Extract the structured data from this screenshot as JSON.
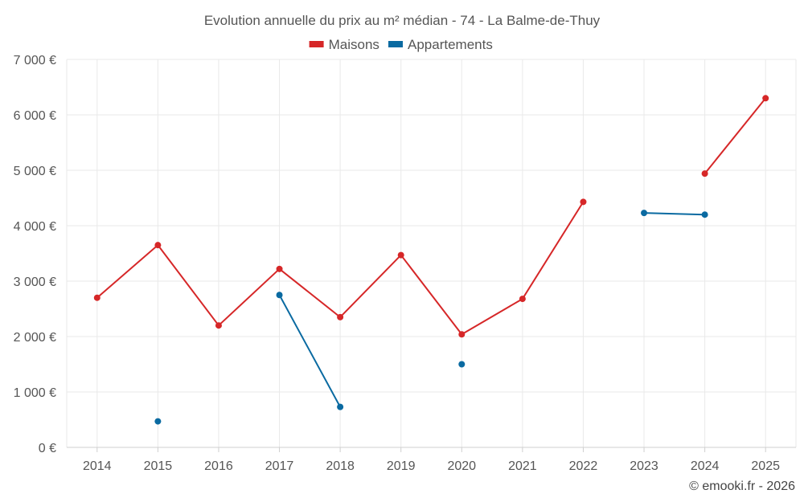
{
  "chart_data": {
    "type": "line",
    "title": "Evolution annuelle du prix au m² médian - 74 - La Balme-de-Thuy",
    "categories": [
      "2014",
      "2015",
      "2016",
      "2017",
      "2018",
      "2019",
      "2020",
      "2021",
      "2022",
      "2023",
      "2024",
      "2025"
    ],
    "ylim": [
      0,
      7000
    ],
    "yticks": [
      0,
      1000,
      2000,
      3000,
      4000,
      5000,
      6000,
      7000
    ],
    "ytick_labels": [
      "0 €",
      "1 000 €",
      "2 000 €",
      "3 000 €",
      "4 000 €",
      "5 000 €",
      "6 000 €",
      "7 000 €"
    ],
    "grid": true,
    "legend_position": "top-center",
    "series": [
      {
        "name": "Maisons",
        "color": "#d62728",
        "values": [
          2700,
          3650,
          2200,
          3220,
          2350,
          3470,
          2040,
          2680,
          4430,
          null,
          4940,
          6300
        ]
      },
      {
        "name": "Appartements",
        "color": "#0a6aa1",
        "values": [
          null,
          470,
          null,
          2750,
          730,
          null,
          1500,
          null,
          null,
          4230,
          4200,
          null
        ]
      }
    ]
  },
  "copyright": "© emooki.fr - 2026"
}
